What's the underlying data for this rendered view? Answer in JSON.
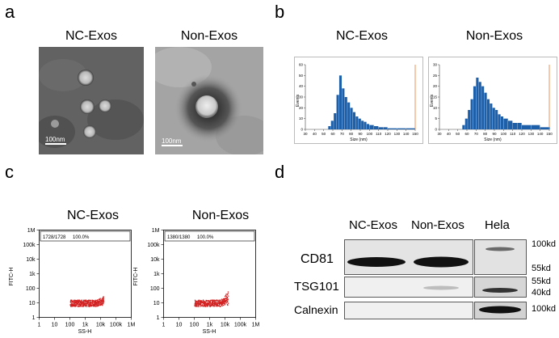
{
  "panels": {
    "a": {
      "letter": "a",
      "captions": [
        "NC-Exos",
        "Non-Exos"
      ],
      "scale_bars": [
        "100nm",
        "100nm"
      ]
    },
    "b": {
      "letter": "b",
      "captions": [
        "NC-Exos",
        "Non-Exos"
      ],
      "charts": [
        {
          "ylabel": "Events",
          "xlabel": "Size (nm)",
          "yticks": [
            "0",
            "10",
            "20",
            "30",
            "40",
            "50",
            "60"
          ],
          "xticks": [
            "30",
            "40",
            "50",
            "60",
            "70",
            "80",
            "90",
            "100",
            "110",
            "120",
            "130",
            "140",
            "150"
          ]
        },
        {
          "ylabel": "Events",
          "xlabel": "Size (nm)",
          "yticks": [
            "0",
            "5",
            "10",
            "15",
            "20",
            "25",
            "30"
          ],
          "xticks": [
            "30",
            "40",
            "50",
            "60",
            "70",
            "80",
            "90",
            "100",
            "110",
            "120",
            "130",
            "140",
            "150"
          ]
        }
      ]
    },
    "c": {
      "letter": "c",
      "captions": [
        "NC-Exos",
        "Non-Exos"
      ],
      "plots": [
        {
          "ylabel": "FITC-H",
          "xlabel": "SS-H",
          "gate_count": "1728/1728",
          "gate_pct": "100.0%",
          "yticks": [
            "1",
            "10",
            "100",
            "1k",
            "10k",
            "100k",
            "1M"
          ],
          "xticks": [
            "1",
            "10",
            "100",
            "1k",
            "10k",
            "100k",
            "1M"
          ]
        },
        {
          "ylabel": "FITC-H",
          "xlabel": "SS-H",
          "gate_count": "1380/1380",
          "gate_pct": "100.0%",
          "yticks": [
            "1",
            "10",
            "100",
            "1k",
            "10k",
            "100k",
            "1M"
          ],
          "xticks": [
            "1",
            "10",
            "100",
            "1k",
            "10k",
            "100k",
            "1M"
          ]
        }
      ]
    },
    "d": {
      "letter": "d",
      "columns": [
        "NC-Exos",
        "Non-Exos",
        "Hela"
      ],
      "rows": [
        "CD81",
        "TSG101",
        "Calnexin"
      ],
      "markers": [
        "100kd",
        "55kd",
        "55kd",
        "40kd",
        "100kd"
      ]
    }
  },
  "chart_data": [
    {
      "type": "bar",
      "title": "NC-Exos",
      "xlabel": "Size (nm)",
      "ylabel": "Events",
      "xlim": [
        30,
        150
      ],
      "ylim": [
        0,
        60
      ],
      "x": [
        55,
        58,
        61,
        64,
        67,
        70,
        73,
        76,
        79,
        82,
        85,
        88,
        91,
        94,
        97,
        100,
        105,
        110,
        115,
        120,
        130,
        140,
        150
      ],
      "values": [
        3,
        8,
        15,
        32,
        50,
        38,
        30,
        25,
        20,
        16,
        12,
        10,
        8,
        7,
        5,
        4,
        3,
        2,
        2,
        1,
        1,
        1,
        0
      ]
    },
    {
      "type": "bar",
      "title": "Non-Exos",
      "xlabel": "Size (nm)",
      "ylabel": "Events",
      "xlim": [
        30,
        150
      ],
      "ylim": [
        0,
        30
      ],
      "x": [
        55,
        58,
        61,
        64,
        67,
        70,
        73,
        76,
        79,
        82,
        85,
        88,
        91,
        94,
        97,
        100,
        105,
        110,
        115,
        120,
        130,
        140,
        150
      ],
      "values": [
        2,
        5,
        9,
        14,
        20,
        24,
        22,
        20,
        17,
        14,
        12,
        10,
        9,
        7,
        6,
        5,
        4,
        3,
        3,
        2,
        2,
        1,
        1
      ]
    }
  ]
}
